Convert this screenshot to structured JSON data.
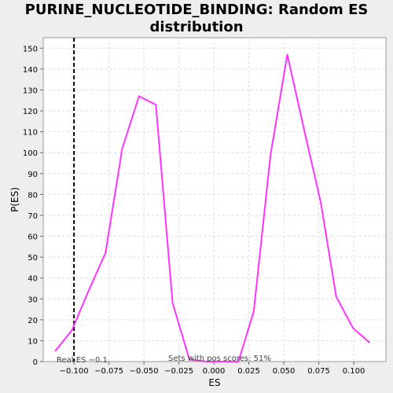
{
  "chart_data": {
    "type": "line",
    "title_lines": [
      "PURINE_NUCLEOTIDE_BINDING: Random ES",
      "distribution"
    ],
    "xlabel": "ES",
    "ylabel": "P(ES)",
    "xlim": [
      -0.122,
      0.123
    ],
    "ylim": [
      0,
      155
    ],
    "x_ticks": [
      -0.1,
      -0.075,
      -0.05,
      -0.025,
      0.0,
      0.025,
      0.05,
      0.075,
      0.1
    ],
    "x_tick_labels": [
      "−0.100",
      "−0.075",
      "−0.050",
      "−0.025",
      "0.000",
      "0.025",
      "0.050",
      "0.075",
      "0.100"
    ],
    "y_ticks": [
      0,
      10,
      20,
      30,
      40,
      50,
      60,
      70,
      80,
      90,
      100,
      110,
      120,
      130,
      140,
      150
    ],
    "grid": true,
    "series": [
      {
        "color": "#ff33ff",
        "x": [
          -0.1135,
          -0.1015,
          -0.0895,
          -0.0775,
          -0.0655,
          -0.0535,
          -0.0415,
          -0.0295,
          -0.0175,
          -0.0055,
          0.0065,
          0.0175,
          0.0285,
          0.0405,
          0.0525,
          0.0645,
          0.0765,
          0.0875,
          0.0995,
          0.1115
        ],
        "y": [
          5,
          15,
          34,
          52,
          102,
          127,
          123,
          28,
          1,
          0,
          0,
          0,
          24,
          99,
          147,
          111,
          76,
          31,
          16,
          9
        ]
      }
    ],
    "vline": {
      "x": -0.1,
      "color": "#000000",
      "style": "dashed"
    },
    "annotations": {
      "real_es": "Real ES −0.1",
      "pos_scores": "Sets with pos scores: 51%"
    }
  },
  "colors": {
    "background": "#eeeeee",
    "plot_bg": "#ffffff",
    "grid": "#dddddd",
    "line": "#ff33ff"
  }
}
